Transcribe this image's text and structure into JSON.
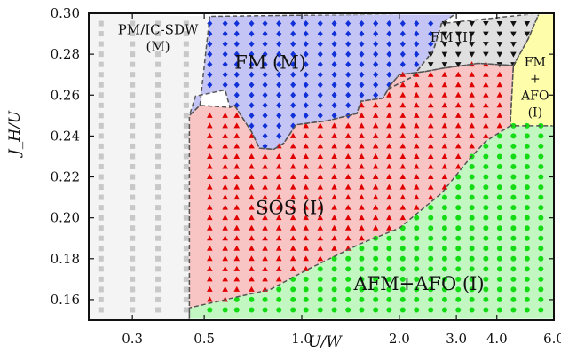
{
  "chart_data": {
    "type": "scatter",
    "title": "",
    "xlabel": "U/W",
    "ylabel": "J_H/U",
    "x_scale": "log",
    "xlim": [
      0.22,
      6.0
    ],
    "ylim": [
      0.15,
      0.3
    ],
    "x_ticks": [
      0.3,
      0.5,
      1.0,
      2.0,
      3.0,
      4.0,
      6.0
    ],
    "x_tick_labels": [
      "0.3",
      "0.5",
      "1.0",
      "2.0",
      "3.0",
      "4.0",
      "6.0"
    ],
    "y_ticks": [
      0.16,
      0.18,
      0.2,
      0.22,
      0.24,
      0.26,
      0.28,
      0.3
    ],
    "y_tick_labels": [
      "0.16",
      "0.18",
      "0.20",
      "0.22",
      "0.24",
      "0.26",
      "0.28",
      "0.30"
    ],
    "regions": [
      {
        "key": "pm",
        "label_lines": [
          "PM/IC-SDW",
          "(M)"
        ],
        "color": "#f4f4f4",
        "marker": "square",
        "marker_color": "#c8c8c8",
        "boundary": [
          [
            0.22,
            0.15
          ],
          [
            0.45,
            0.15
          ],
          [
            0.45,
            0.25
          ],
          [
            0.485,
            0.255
          ],
          [
            0.52,
            0.2985
          ],
          [
            0.22,
            0.3
          ]
        ]
      },
      {
        "key": "fm_m",
        "label_lines": [
          "FM (M)"
        ],
        "color": "#c4c4f5",
        "marker": "diamond",
        "marker_color": "#1030d8",
        "boundary": [
          [
            0.52,
            0.2985
          ],
          [
            0.485,
            0.255
          ],
          [
            0.45,
            0.25
          ],
          [
            0.47,
            0.2595
          ],
          [
            0.58,
            0.2625
          ],
          [
            0.6,
            0.254
          ],
          [
            0.62,
            0.255
          ],
          [
            0.7,
            0.242
          ],
          [
            0.74,
            0.234
          ],
          [
            0.82,
            0.2335
          ],
          [
            0.88,
            0.2365
          ],
          [
            0.96,
            0.2455
          ],
          [
            1.2,
            0.2475
          ],
          [
            1.48,
            0.251
          ],
          [
            1.52,
            0.257
          ],
          [
            1.78,
            0.2585
          ],
          [
            1.85,
            0.263
          ],
          [
            2.2,
            0.269
          ],
          [
            2.55,
            0.282
          ],
          [
            2.7,
            0.295
          ],
          [
            3.0,
            0.3
          ]
        ]
      },
      {
        "key": "fm_i",
        "label_lines": [
          "FM (I)"
        ],
        "color": "#e0e0e0",
        "marker": "triangle-down",
        "marker_color": "#111111",
        "boundary": [
          [
            2.7,
            0.295
          ],
          [
            2.55,
            0.282
          ],
          [
            2.2,
            0.269
          ],
          [
            1.85,
            0.263
          ],
          [
            1.88,
            0.265
          ],
          [
            2.0,
            0.27
          ],
          [
            2.4,
            0.2715
          ],
          [
            2.7,
            0.273
          ],
          [
            3.5,
            0.2755
          ],
          [
            4.5,
            0.2745
          ],
          [
            5.0,
            0.2875
          ],
          [
            5.4,
            0.3
          ]
        ]
      },
      {
        "key": "fm_afo",
        "label_lines": [
          "FM",
          "+",
          "AFO",
          "(I)"
        ],
        "color": "#fdfdaa",
        "marker": "none",
        "marker_color": "#111111",
        "boundary": [
          [
            4.5,
            0.2745
          ],
          [
            5.0,
            0.2875
          ],
          [
            5.4,
            0.3
          ],
          [
            6.0,
            0.3
          ],
          [
            6.0,
            0.245
          ],
          [
            4.4,
            0.245
          ]
        ]
      },
      {
        "key": "sos",
        "label_lines": [
          "SOS (I)"
        ],
        "color": "#f8c4c4",
        "marker": "triangle-up",
        "marker_color": "#e00000",
        "boundary": [
          [
            0.45,
            0.15
          ],
          [
            0.45,
            0.25
          ],
          [
            0.485,
            0.255
          ],
          [
            0.6,
            0.254
          ],
          [
            0.62,
            0.255
          ],
          [
            0.7,
            0.242
          ],
          [
            0.74,
            0.234
          ],
          [
            0.82,
            0.2335
          ],
          [
            0.88,
            0.2365
          ],
          [
            0.96,
            0.2455
          ],
          [
            1.2,
            0.2475
          ],
          [
            1.48,
            0.251
          ],
          [
            1.52,
            0.257
          ],
          [
            1.78,
            0.2585
          ],
          [
            1.85,
            0.263
          ],
          [
            1.88,
            0.265
          ],
          [
            2.0,
            0.27
          ],
          [
            2.4,
            0.2715
          ],
          [
            2.7,
            0.273
          ],
          [
            3.5,
            0.2755
          ],
          [
            4.5,
            0.2745
          ],
          [
            4.4,
            0.245
          ],
          [
            3.7,
            0.2375
          ],
          [
            3.3,
            0.229
          ],
          [
            2.7,
            0.212
          ],
          [
            2.0,
            0.195
          ],
          [
            1.5,
            0.187
          ],
          [
            1.05,
            0.175
          ],
          [
            0.8,
            0.165
          ],
          [
            0.6,
            0.1605
          ],
          [
            0.45,
            0.156
          ]
        ]
      },
      {
        "key": "afm_afo",
        "label_lines": [
          "AFM+AFO (I)"
        ],
        "color": "#c2f7c2",
        "marker": "circle",
        "marker_color": "#14dc14",
        "boundary": [
          [
            0.45,
            0.156
          ],
          [
            0.6,
            0.1605
          ],
          [
            0.8,
            0.165
          ],
          [
            1.05,
            0.175
          ],
          [
            1.5,
            0.187
          ],
          [
            2.0,
            0.195
          ],
          [
            2.7,
            0.212
          ],
          [
            3.3,
            0.229
          ],
          [
            3.7,
            0.2375
          ],
          [
            4.4,
            0.245
          ],
          [
            6.0,
            0.245
          ],
          [
            6.0,
            0.15
          ],
          [
            0.45,
            0.15
          ]
        ]
      }
    ],
    "labels": [
      {
        "region": "pm",
        "x": 0.36,
        "y": 0.288
      },
      {
        "region": "fm_m",
        "x": 0.8,
        "y": 0.276
      },
      {
        "region": "fm_i",
        "x": 2.9,
        "y": 0.2885
      },
      {
        "region": "fm_afo",
        "x": 5.25,
        "y": 0.264
      },
      {
        "region": "sos",
        "x": 0.92,
        "y": 0.205
      },
      {
        "region": "afm_afo",
        "x": 2.3,
        "y": 0.168
      }
    ],
    "grid_x": [
      0.24,
      0.3,
      0.36,
      0.44,
      0.52,
      0.58,
      0.63,
      0.7,
      0.77,
      0.85,
      0.94,
      1.03,
      1.14,
      1.26,
      1.39,
      1.53,
      1.69,
      1.86,
      2.05,
      2.26,
      2.5,
      2.76,
      3.04,
      3.35,
      3.7,
      4.08,
      4.5,
      4.96,
      5.47,
      6.0
    ],
    "grid_y": [
      0.15,
      0.155,
      0.16,
      0.165,
      0.17,
      0.175,
      0.18,
      0.185,
      0.19,
      0.195,
      0.2,
      0.205,
      0.21,
      0.215,
      0.22,
      0.225,
      0.23,
      0.235,
      0.24,
      0.245,
      0.25,
      0.255,
      0.26,
      0.265,
      0.27,
      0.275,
      0.28,
      0.285,
      0.29,
      0.295,
      0.3
    ]
  }
}
